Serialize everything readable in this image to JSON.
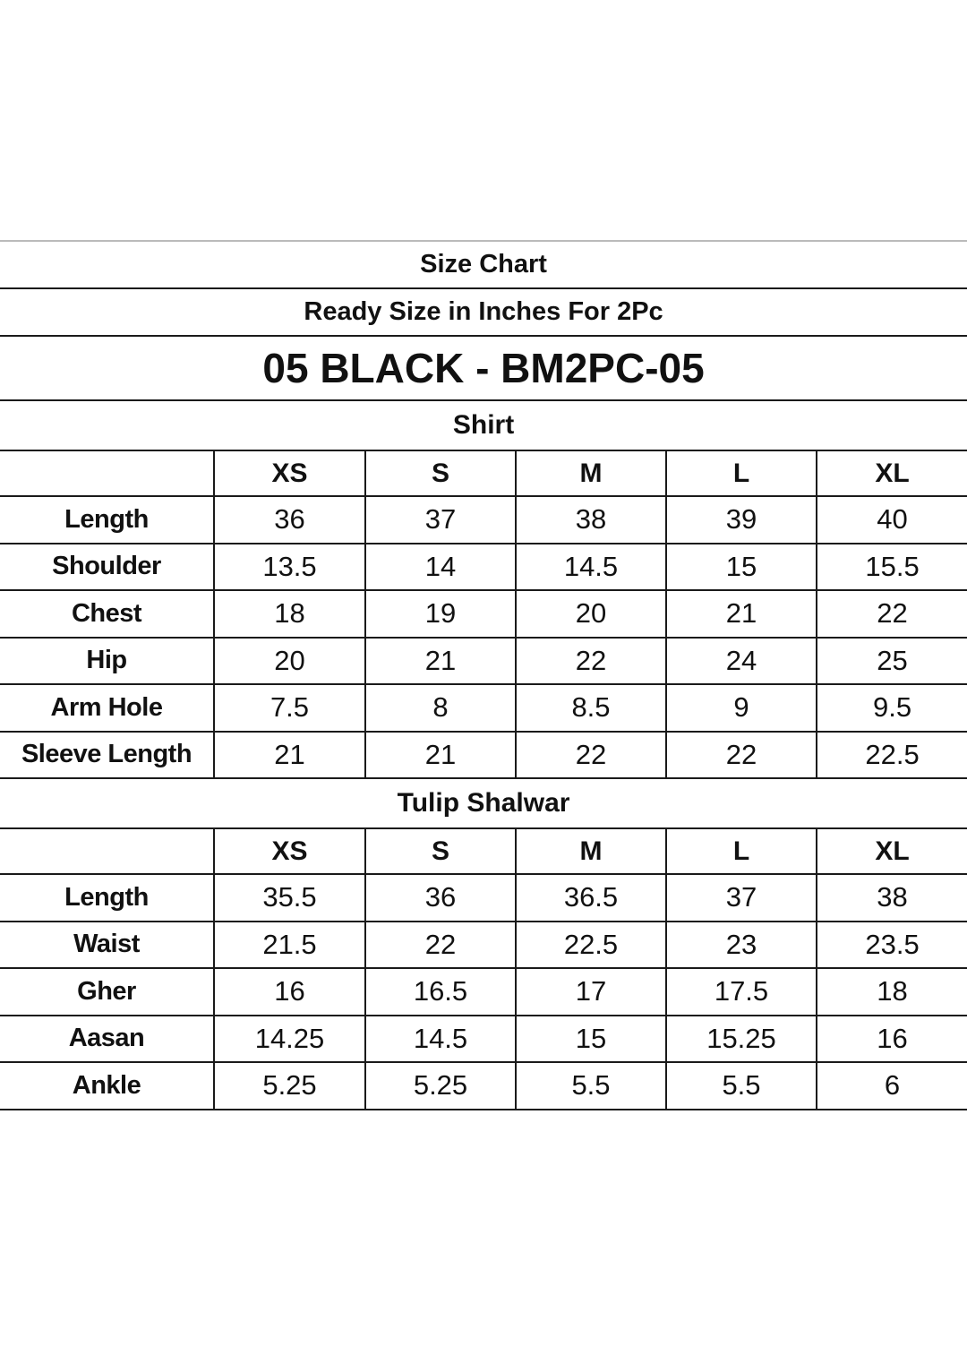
{
  "title": "Size Chart",
  "subtitle": "Ready Size in Inches For 2Pc",
  "product": "05 BLACK - BM2PC-05",
  "sections": [
    {
      "name": "Shirt",
      "sizes": [
        "XS",
        "S",
        "M",
        "L",
        "XL"
      ],
      "rows": [
        {
          "label": "Length",
          "values": [
            "36",
            "37",
            "38",
            "39",
            "40"
          ]
        },
        {
          "label": "Shoulder",
          "values": [
            "13.5",
            "14",
            "14.5",
            "15",
            "15.5"
          ]
        },
        {
          "label": "Chest",
          "values": [
            "18",
            "19",
            "20",
            "21",
            "22"
          ]
        },
        {
          "label": "Hip",
          "values": [
            "20",
            "21",
            "22",
            "24",
            "25"
          ]
        },
        {
          "label": "Arm Hole",
          "values": [
            "7.5",
            "8",
            "8.5",
            "9",
            "9.5"
          ]
        },
        {
          "label": "Sleeve Length",
          "values": [
            "21",
            "21",
            "22",
            "22",
            "22.5"
          ]
        }
      ]
    },
    {
      "name": "Tulip Shalwar",
      "sizes": [
        "XS",
        "S",
        "M",
        "L",
        "XL"
      ],
      "rows": [
        {
          "label": "Length",
          "values": [
            "35.5",
            "36",
            "36.5",
            "37",
            "38"
          ]
        },
        {
          "label": "Waist",
          "values": [
            "21.5",
            "22",
            "22.5",
            "23",
            "23.5"
          ]
        },
        {
          "label": "Gher",
          "values": [
            "16",
            "16.5",
            "17",
            "17.5",
            "18"
          ]
        },
        {
          "label": "Aasan",
          "values": [
            "14.25",
            "14.5",
            "15",
            "15.25",
            "16"
          ]
        },
        {
          "label": "Ankle",
          "values": [
            "5.25",
            "5.25",
            "5.5",
            "5.5",
            "6"
          ]
        }
      ]
    }
  ]
}
